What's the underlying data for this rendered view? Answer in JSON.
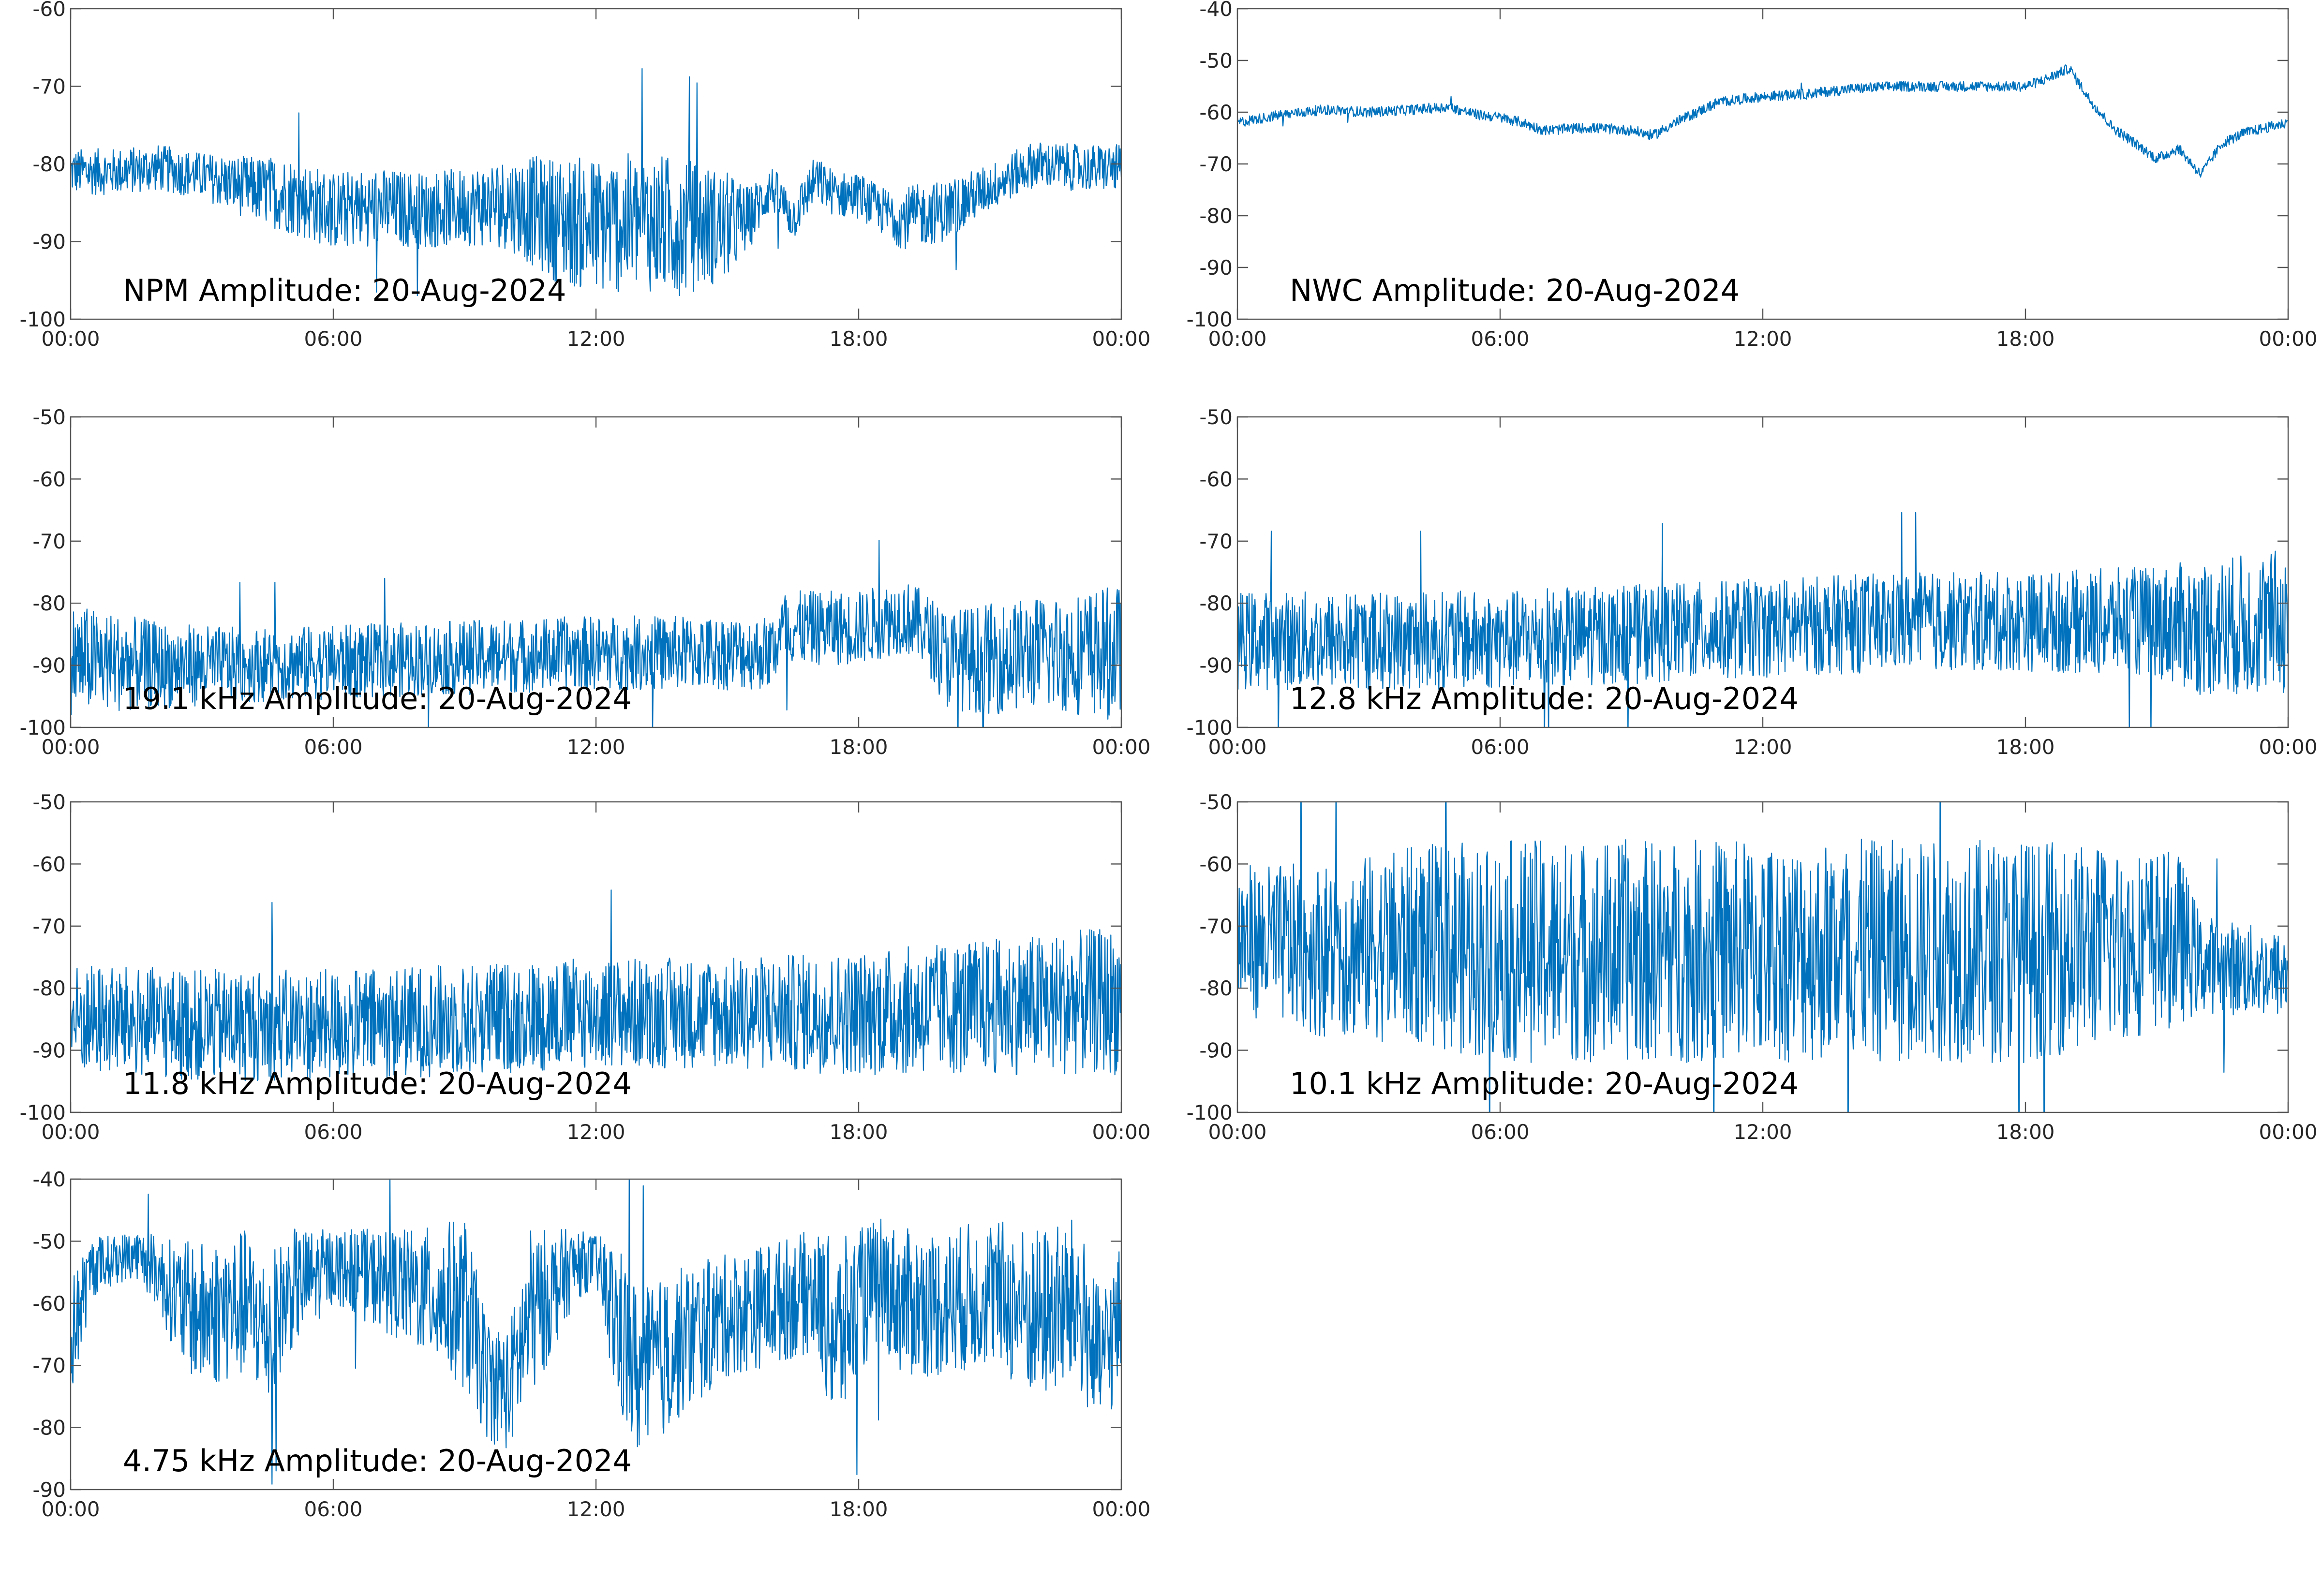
{
  "colors": {
    "series": "#0072BD",
    "axis": "#555555",
    "text": "#262626"
  },
  "x_tick_labels": [
    "00:00",
    "06:00",
    "12:00",
    "18:00",
    "00:00"
  ],
  "chart_data": [
    {
      "type": "line",
      "annotation": "NPM Amplitude: 20-Aug-2024",
      "x_range_hours": [
        0,
        24
      ],
      "ylim": [
        -100,
        -60
      ],
      "yticks": [
        -100,
        -90,
        -80,
        -70,
        -60
      ],
      "grid": false,
      "series": [
        {
          "x": [
            0,
            1,
            2,
            3,
            4,
            5,
            6,
            7,
            8,
            9,
            10,
            11,
            12,
            13,
            14,
            15,
            15.5,
            16,
            16.5,
            17,
            17.5,
            18,
            18.5,
            19,
            20,
            21,
            22,
            23,
            24
          ],
          "y": [
            -81,
            -81,
            -80.5,
            -81.5,
            -83,
            -84,
            -86,
            -85.5,
            -86,
            -85.5,
            -85,
            -87,
            -88,
            -87.5,
            -88,
            -88,
            -87,
            -83,
            -87,
            -82,
            -84,
            -84,
            -86,
            -87,
            -86,
            -83,
            -80,
            -80.5,
            -80.5
          ],
          "spread": [
            3,
            3,
            3,
            3,
            4,
            5,
            5,
            5,
            5,
            5,
            6,
            8,
            9,
            9,
            9,
            7,
            4,
            3,
            3,
            3,
            3,
            3,
            3,
            4,
            4,
            3,
            3,
            3,
            3
          ]
        }
      ]
    },
    {
      "type": "line",
      "annotation": "NWC Amplitude: 20-Aug-2024",
      "x_range_hours": [
        0,
        24
      ],
      "ylim": [
        -100,
        -40
      ],
      "yticks": [
        -100,
        -90,
        -80,
        -70,
        -60,
        -50,
        -40
      ],
      "grid": false,
      "series": [
        {
          "x": [
            0,
            1,
            2,
            3,
            4,
            4.8,
            5.5,
            6,
            6.5,
            7,
            8,
            9,
            9.5,
            10,
            11,
            12,
            13,
            14,
            15,
            16,
            17,
            18,
            18.5,
            19,
            19.5,
            20,
            20.5,
            21,
            21.5,
            22,
            22.5,
            23,
            24
          ],
          "y": [
            -62,
            -60.5,
            -59.5,
            -60,
            -59.5,
            -59,
            -60.5,
            -61,
            -62,
            -63.5,
            -63,
            -63.5,
            -64.5,
            -62,
            -58,
            -57,
            -56.5,
            -55.5,
            -55,
            -55,
            -55,
            -55,
            -53.5,
            -51.5,
            -58,
            -63,
            -66,
            -69,
            -67,
            -72,
            -66,
            -64,
            -62
          ],
          "spread": [
            1,
            1,
            1,
            1,
            1,
            1,
            1,
            1,
            1,
            1,
            1,
            1,
            1,
            1,
            1,
            1,
            1,
            1,
            1,
            1,
            1,
            1,
            1,
            1,
            1,
            1,
            1,
            1,
            1,
            1,
            1,
            1,
            1
          ]
        }
      ]
    },
    {
      "type": "line",
      "annotation": "19.1 kHz Amplitude: 20-Aug-2024",
      "x_range_hours": [
        0,
        24
      ],
      "ylim": [
        -100,
        -50
      ],
      "yticks": [
        -100,
        -90,
        -80,
        -70,
        -60,
        -50
      ],
      "grid": false,
      "series": [
        {
          "x": [
            0,
            2,
            4,
            6,
            8,
            10,
            12,
            14,
            15,
            16,
            16.3,
            17,
            18,
            19,
            19.5,
            20,
            21,
            22,
            23,
            24
          ],
          "y": [
            -89,
            -90,
            -90,
            -89.5,
            -89,
            -88.5,
            -88,
            -88,
            -88,
            -88,
            -84,
            -84,
            -84,
            -82,
            -84,
            -89,
            -89,
            -88,
            -88,
            -88
          ],
          "spread": [
            9,
            7,
            6,
            6,
            6,
            6,
            6,
            6,
            6,
            6,
            6,
            6,
            6,
            6,
            6,
            8,
            9,
            9,
            10,
            11
          ]
        }
      ]
    },
    {
      "type": "line",
      "annotation": "12.8 kHz Amplitude: 20-Aug-2024",
      "x_range_hours": [
        0,
        24
      ],
      "ylim": [
        -100,
        -50
      ],
      "yticks": [
        -100,
        -90,
        -80,
        -70,
        -60,
        -50
      ],
      "grid": false,
      "series": [
        {
          "x": [
            0,
            3,
            6,
            9,
            12,
            15,
            18,
            21,
            22,
            24
          ],
          "y": [
            -86,
            -86,
            -86,
            -85,
            -84,
            -83,
            -83,
            -83,
            -84,
            -83
          ],
          "spread": [
            8,
            8,
            8,
            8,
            8,
            8,
            8,
            9,
            11,
            12
          ]
        }
      ]
    },
    {
      "type": "line",
      "annotation": "11.8 kHz Amplitude: 20-Aug-2024",
      "x_range_hours": [
        0,
        24
      ],
      "ylim": [
        -100,
        -50
      ],
      "yticks": [
        -100,
        -90,
        -80,
        -70,
        -60,
        -50
      ],
      "grid": false,
      "series": [
        {
          "x": [
            0,
            3,
            6,
            9,
            12,
            15,
            18,
            21,
            24
          ],
          "y": [
            -85,
            -86,
            -86,
            -85,
            -84,
            -84,
            -84,
            -83,
            -82
          ],
          "spread": [
            9,
            9,
            9,
            9,
            9,
            9,
            10,
            11,
            12
          ]
        }
      ]
    },
    {
      "type": "line",
      "annotation": "10.1 kHz Amplitude: 20-Aug-2024",
      "x_range_hours": [
        0,
        24
      ],
      "ylim": [
        -100,
        -50
      ],
      "yticks": [
        -100,
        -90,
        -80,
        -70,
        -60,
        -50
      ],
      "grid": false,
      "series": [
        {
          "x": [
            0,
            2,
            4,
            6,
            8,
            10,
            12,
            14,
            16,
            18,
            20,
            21.5,
            22,
            24
          ],
          "y": [
            -72,
            -74,
            -73,
            -74,
            -74,
            -74,
            -74,
            -74,
            -74,
            -74,
            -73,
            -72,
            -76,
            -78
          ],
          "spread": [
            12,
            14,
            16,
            18,
            18,
            18,
            18,
            18,
            18,
            18,
            16,
            14,
            8,
            7
          ]
        }
      ]
    },
    {
      "type": "line",
      "annotation": "4.75 kHz Amplitude: 20-Aug-2024",
      "x_range_hours": [
        0,
        24
      ],
      "ylim": [
        -90,
        -40
      ],
      "yticks": [
        -90,
        -80,
        -70,
        -60,
        -50,
        -40
      ],
      "grid": false,
      "series": [
        {
          "x": [
            0,
            0.5,
            1,
            1.5,
            2,
            2.5,
            3,
            4,
            4.5,
            5,
            6,
            7,
            8,
            9,
            9.5,
            10,
            10.5,
            11,
            11.5,
            12,
            12.5,
            13,
            14,
            15,
            16,
            17,
            17.5,
            18,
            18.5,
            19,
            20,
            21,
            22,
            23,
            23.5,
            24
          ],
          "y": [
            -66,
            -54,
            -53,
            -52,
            -55,
            -60,
            -62,
            -60,
            -65,
            -58,
            -54,
            -56,
            -58,
            -60,
            -72,
            -74,
            -62,
            -58,
            -54,
            -53,
            -64,
            -72,
            -66,
            -62,
            -60,
            -58,
            -66,
            -60,
            -56,
            -60,
            -60,
            -58,
            -62,
            -60,
            -70,
            -62
          ],
          "spread": [
            10,
            5,
            4,
            4,
            6,
            10,
            12,
            12,
            12,
            10,
            6,
            8,
            10,
            14,
            10,
            10,
            14,
            10,
            6,
            4,
            14,
            14,
            12,
            10,
            10,
            10,
            16,
            12,
            10,
            12,
            12,
            12,
            14,
            14,
            12,
            12
          ]
        }
      ]
    }
  ]
}
